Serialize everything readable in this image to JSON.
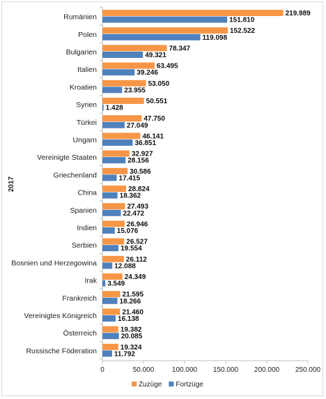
{
  "chart_data": {
    "type": "bar",
    "orientation": "horizontal",
    "group_label": "2017",
    "categories": [
      "Rumänien",
      "Polen",
      "Bulgarien",
      "Italien",
      "Kroatien",
      "Syrien",
      "Türkei",
      "Ungarn",
      "Vereinigte Staaten",
      "Griechenland",
      "China",
      "Spanien",
      "Indien",
      "Serbien",
      "Bosnien und Herzegowina",
      "Irak",
      "Frankreich",
      "Vereinigtes Königreich",
      "Österreich",
      "Russische Föderation"
    ],
    "series": [
      {
        "name": "Zuzüge",
        "color": "#f79646",
        "values": [
          219989,
          152522,
          78347,
          63495,
          53050,
          50551,
          47750,
          46141,
          32927,
          30586,
          28824,
          27493,
          26946,
          26527,
          26112,
          24349,
          21595,
          21460,
          19382,
          19324
        ],
        "labels": [
          "219.989",
          "152.522",
          "78.347",
          "63.495",
          "53.050",
          "50.551",
          "47.750",
          "46.141",
          "32.927",
          "30.586",
          "28.824",
          "27.493",
          "26.946",
          "26.527",
          "26.112",
          "24.349",
          "21.595",
          "21.460",
          "19.382",
          "19.324"
        ]
      },
      {
        "name": "Fortzüge",
        "color": "#4f81bd",
        "values": [
          151810,
          119098,
          49321,
          39246,
          23955,
          1428,
          27049,
          36851,
          28156,
          17415,
          18362,
          22472,
          15076,
          19554,
          12088,
          3549,
          18266,
          16138,
          20085,
          11792
        ],
        "labels": [
          "151.810",
          "119.098",
          "49.321",
          "39.246",
          "23.955",
          "1.428",
          "27.049",
          "36.851",
          "28.156",
          "17.415",
          "18.362",
          "22.472",
          "15.076",
          "19.554",
          "12.088",
          "3.549",
          "18.266",
          "16.138",
          "20.085",
          "11.792"
        ]
      }
    ],
    "xlim": [
      0,
      250000
    ],
    "xticks": [
      0,
      50000,
      100000,
      150000,
      200000,
      250000
    ],
    "xtick_labels": [
      "0",
      "50.000",
      "100.000",
      "150.000",
      "200.000",
      "250.000"
    ],
    "legend_position": "bottom",
    "grid": false
  }
}
